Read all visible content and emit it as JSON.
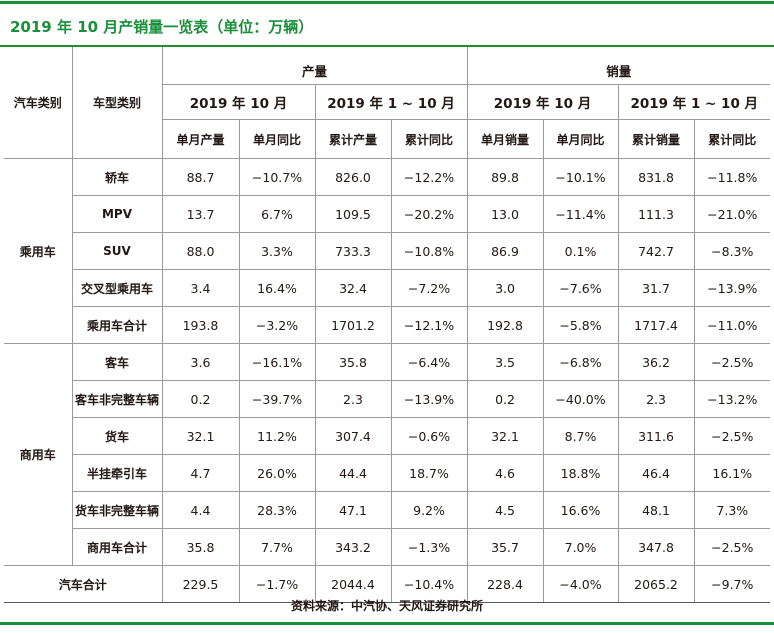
{
  "title": "2019 年 10 月产销量一览表（单位：万辆）",
  "header": {
    "car_category": "汽车类别",
    "model_category": "车型类别",
    "production": "产量",
    "sales": "销量",
    "period_month": "2019 年 10 月",
    "period_ytd": "2019 年 1 ~ 10 月",
    "col_month_prod": "单月产量",
    "col_month_yoy": "单月同比",
    "col_ytd_prod": "累计产量",
    "col_ytd_yoy": "累计同比",
    "col_month_sales": "单月销量",
    "col_month_sales_yoy": "单月同比",
    "col_ytd_sales": "累计销量",
    "col_ytd_sales_yoy": "累计同比"
  },
  "groups": [
    {
      "name": "乘用车",
      "rows": [
        {
          "model": "轿车",
          "v": [
            "88.7",
            "−10.7%",
            "826.0",
            "−12.2%",
            "89.8",
            "−10.1%",
            "831.8",
            "−11.8%"
          ]
        },
        {
          "model": "MPV",
          "v": [
            "13.7",
            "6.7%",
            "109.5",
            "−20.2%",
            "13.0",
            "−11.4%",
            "111.3",
            "−21.0%"
          ]
        },
        {
          "model": "SUV",
          "v": [
            "88.0",
            "3.3%",
            "733.3",
            "−10.8%",
            "86.9",
            "0.1%",
            "742.7",
            "−8.3%"
          ]
        },
        {
          "model": "交叉型乘用车",
          "v": [
            "3.4",
            "16.4%",
            "32.4",
            "−7.2%",
            "3.0",
            "−7.6%",
            "31.7",
            "−13.9%"
          ]
        },
        {
          "model": "乘用车合计",
          "v": [
            "193.8",
            "−3.2%",
            "1701.2",
            "−12.1%",
            "192.8",
            "−5.8%",
            "1717.4",
            "−11.0%"
          ]
        }
      ]
    },
    {
      "name": "商用车",
      "rows": [
        {
          "model": "客车",
          "v": [
            "3.6",
            "−16.1%",
            "35.8",
            "−6.4%",
            "3.5",
            "−6.8%",
            "36.2",
            "−2.5%"
          ]
        },
        {
          "model": "客车非完整车辆",
          "v": [
            "0.2",
            "−39.7%",
            "2.3",
            "−13.9%",
            "0.2",
            "−40.0%",
            "2.3",
            "−13.2%"
          ]
        },
        {
          "model": "货车",
          "v": [
            "32.1",
            "11.2%",
            "307.4",
            "−0.6%",
            "32.1",
            "8.7%",
            "311.6",
            "−2.5%"
          ]
        },
        {
          "model": "半挂牵引车",
          "v": [
            "4.7",
            "26.0%",
            "44.4",
            "18.7%",
            "4.6",
            "18.8%",
            "46.4",
            "16.1%"
          ]
        },
        {
          "model": "货车非完整车辆",
          "v": [
            "4.4",
            "28.3%",
            "47.1",
            "9.2%",
            "4.5",
            "16.6%",
            "48.1",
            "7.3%"
          ]
        },
        {
          "model": "商用车合计",
          "v": [
            "35.8",
            "7.7%",
            "343.2",
            "−1.3%",
            "35.7",
            "7.0%",
            "347.8",
            "−2.5%"
          ]
        }
      ]
    }
  ],
  "total": {
    "label": "汽车合计",
    "v": [
      "229.5",
      "−1.7%",
      "2044.4",
      "−10.4%",
      "228.4",
      "−4.0%",
      "2065.2",
      "−9.7%"
    ]
  },
  "source": "资料来源：中汽协、天风证券研究所",
  "colors": {
    "accent": "#1a8f3a",
    "grid": "#9a9a9a"
  }
}
